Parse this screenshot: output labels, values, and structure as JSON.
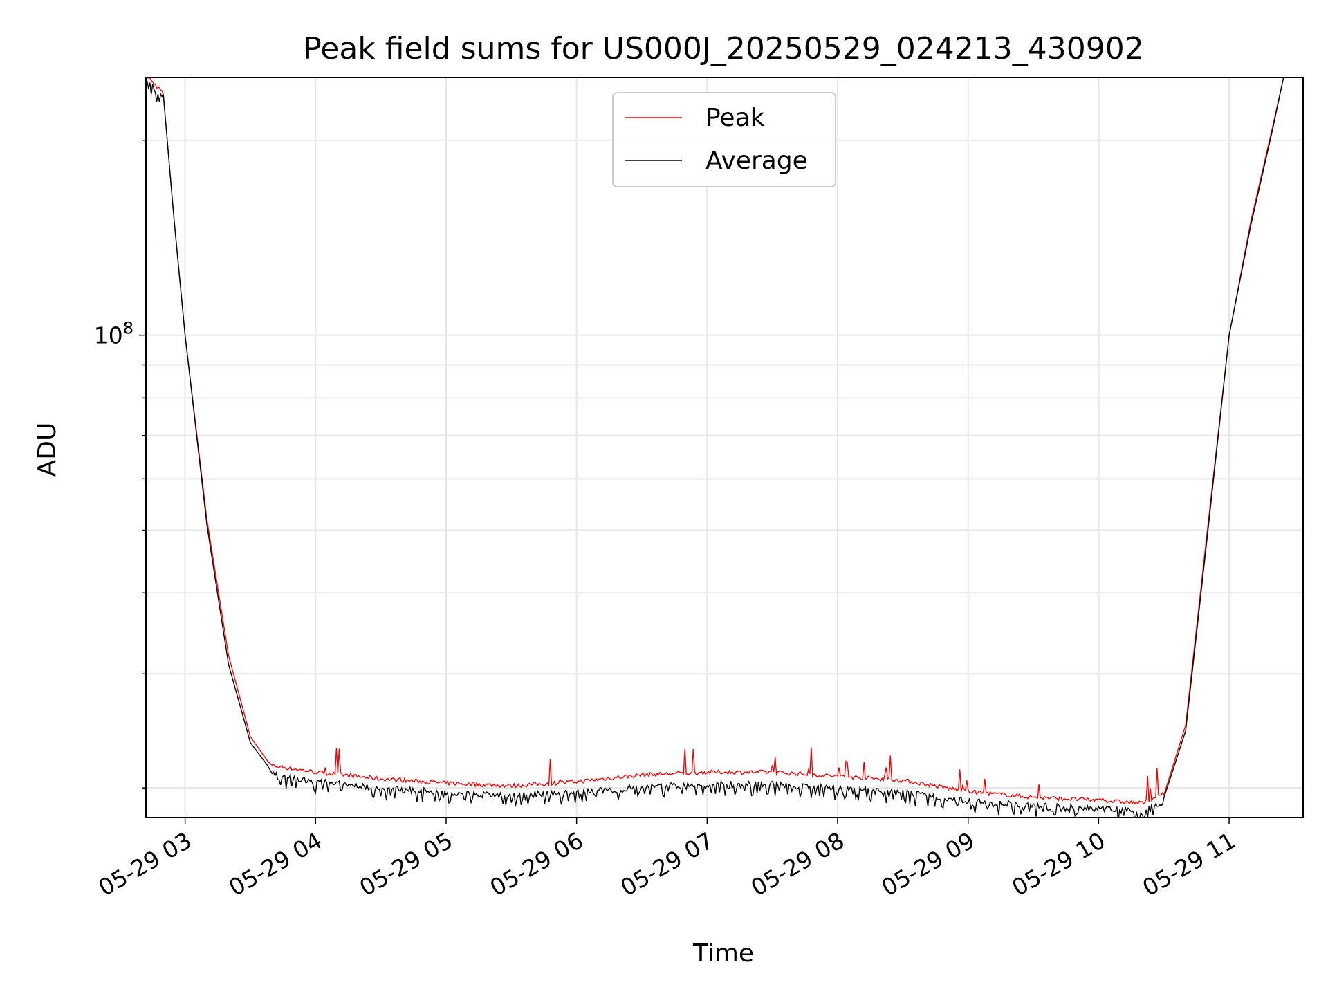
{
  "chart_data": {
    "type": "line",
    "title": "Peak field sums for US000J_20250529_024213_430902",
    "xlabel": "Time",
    "ylabel": "ADU",
    "y_scale": "log",
    "grid": true,
    "legend_position": "top-center",
    "x_tick_labels": [
      "05-29 03",
      "05-29 04",
      "05-29 05",
      "05-29 06",
      "05-29 07",
      "05-29 08",
      "05-29 09",
      "05-29 10",
      "05-29 11"
    ],
    "x_range": [
      "2025-05-29 02:42",
      "2025-05-29 11:34"
    ],
    "y_range": [
      18000000,
      250000000
    ],
    "y_major_ticks": [
      {
        "value": 100000000,
        "label": "10^8"
      }
    ],
    "series": [
      {
        "name": "Peak",
        "color": "#ff0000",
        "points": [
          [
            "2025-05-29 02:42",
            250000000
          ],
          [
            "2025-05-29 02:50",
            235000000
          ],
          [
            "2025-05-29 02:55",
            150000000
          ],
          [
            "2025-05-29 03:00",
            100000000
          ],
          [
            "2025-05-29 03:10",
            52000000
          ],
          [
            "2025-05-29 03:20",
            32000000
          ],
          [
            "2025-05-29 03:30",
            24000000
          ],
          [
            "2025-05-29 03:40",
            21500000
          ],
          [
            "2025-05-29 04:00",
            21000000
          ],
          [
            "2025-05-29 04:30",
            20500000
          ],
          [
            "2025-05-29 05:00",
            20200000
          ],
          [
            "2025-05-29 05:30",
            20000000
          ],
          [
            "2025-05-29 06:00",
            20300000
          ],
          [
            "2025-05-29 06:30",
            20800000
          ],
          [
            "2025-05-29 07:00",
            21000000
          ],
          [
            "2025-05-29 07:30",
            21000000
          ],
          [
            "2025-05-29 08:00",
            20700000
          ],
          [
            "2025-05-29 08:30",
            20400000
          ],
          [
            "2025-05-29 09:00",
            19600000
          ],
          [
            "2025-05-29 09:30",
            19200000
          ],
          [
            "2025-05-29 10:00",
            19000000
          ],
          [
            "2025-05-29 10:20",
            18800000
          ],
          [
            "2025-05-29 10:30",
            19500000
          ],
          [
            "2025-05-29 10:40",
            25000000
          ],
          [
            "2025-05-29 10:50",
            50000000
          ],
          [
            "2025-05-29 11:00",
            100000000
          ],
          [
            "2025-05-29 11:10",
            150000000
          ],
          [
            "2025-05-29 11:20",
            210000000
          ],
          [
            "2025-05-29 11:25",
            250000000
          ]
        ]
      },
      {
        "name": "Average",
        "color": "#000000",
        "points": [
          [
            "2025-05-29 02:42",
            250000000
          ],
          [
            "2025-05-29 02:50",
            235000000
          ],
          [
            "2025-05-29 02:55",
            150000000
          ],
          [
            "2025-05-29 03:00",
            100000000
          ],
          [
            "2025-05-29 03:10",
            51000000
          ],
          [
            "2025-05-29 03:20",
            31000000
          ],
          [
            "2025-05-29 03:30",
            23500000
          ],
          [
            "2025-05-29 03:40",
            21200000
          ],
          [
            "2025-05-29 04:00",
            20700000
          ],
          [
            "2025-05-29 04:30",
            20200000
          ],
          [
            "2025-05-29 05:00",
            19900000
          ],
          [
            "2025-05-29 05:30",
            19700000
          ],
          [
            "2025-05-29 06:00",
            19900000
          ],
          [
            "2025-05-29 06:30",
            20300000
          ],
          [
            "2025-05-29 07:00",
            20500000
          ],
          [
            "2025-05-29 07:30",
            20500000
          ],
          [
            "2025-05-29 08:00",
            20200000
          ],
          [
            "2025-05-29 08:30",
            19900000
          ],
          [
            "2025-05-29 09:00",
            19300000
          ],
          [
            "2025-05-29 09:30",
            19000000
          ],
          [
            "2025-05-29 10:00",
            18800000
          ],
          [
            "2025-05-29 10:20",
            18600000
          ],
          [
            "2025-05-29 10:30",
            19300000
          ],
          [
            "2025-05-29 10:40",
            24500000
          ],
          [
            "2025-05-29 10:50",
            49000000
          ],
          [
            "2025-05-29 11:00",
            100000000
          ],
          [
            "2025-05-29 11:10",
            148000000
          ],
          [
            "2025-05-29 11:20",
            208000000
          ],
          [
            "2025-05-29 11:25",
            250000000
          ]
        ]
      }
    ]
  }
}
